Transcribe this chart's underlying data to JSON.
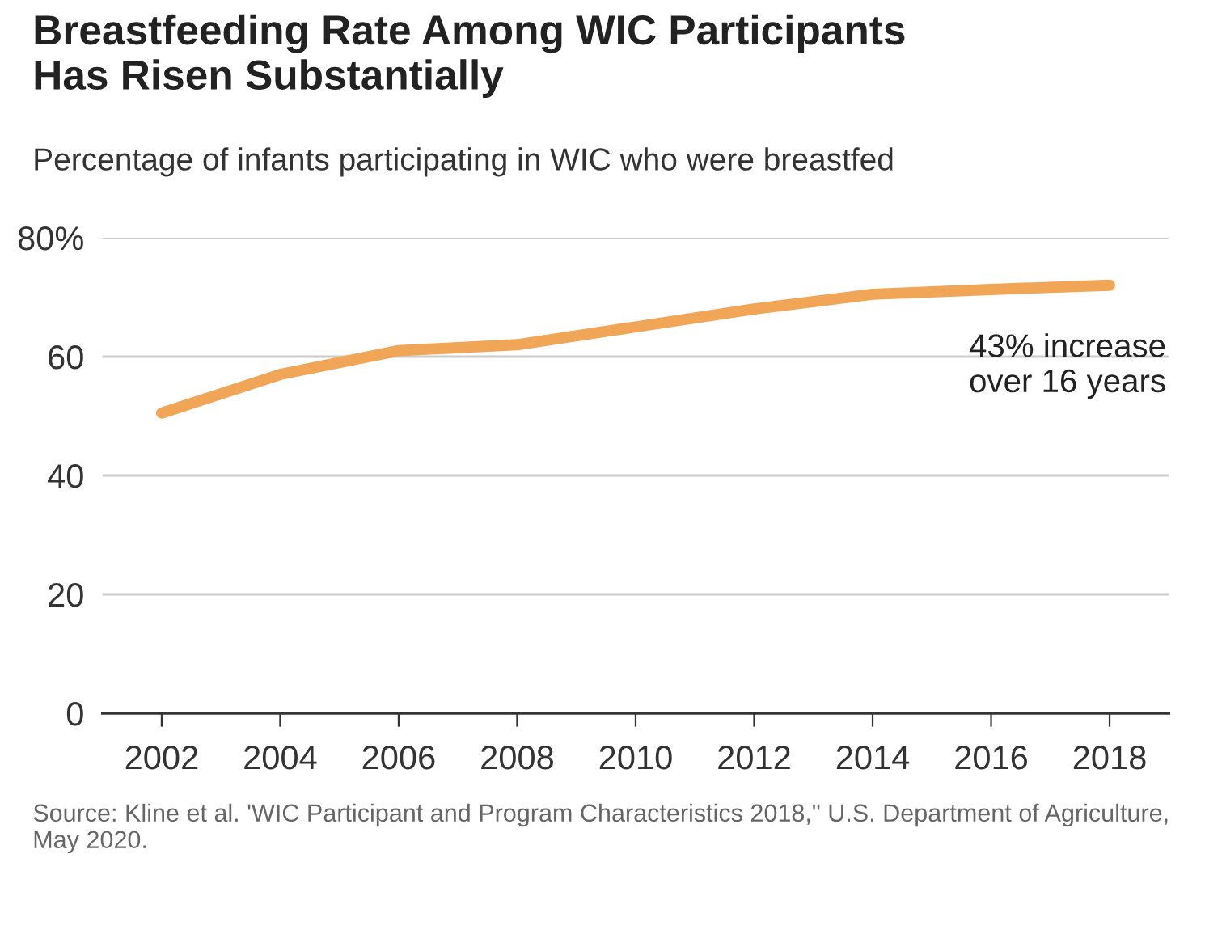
{
  "chart_data": {
    "type": "line",
    "title": "Breastfeeding Rate Among WIC Participants\nHas Risen Substantially",
    "subtitle": "Percentage of infants participating in WIC who were breastfed",
    "x": [
      2002,
      2004,
      2006,
      2008,
      2010,
      2012,
      2014,
      2016,
      2018
    ],
    "series": [
      {
        "color": "#f0a656",
        "values": [
          50.5,
          57,
          61,
          62,
          65,
          68,
          70.5,
          71.3,
          72
        ]
      }
    ],
    "xlim": [
      2001,
      2019
    ],
    "xticks": [
      2002,
      2004,
      2006,
      2008,
      2010,
      2012,
      2014,
      2016,
      2018
    ],
    "ylim": [
      0,
      80
    ],
    "yticks": [
      0,
      20,
      40,
      60,
      {
        "value": 80,
        "label": "80%"
      }
    ],
    "grid": "y",
    "marker": "none",
    "line_style": "solid",
    "annotations": [
      "43% increase\nover 16 years",
      "Source: Kline et al. 'WIC Participant and Program Characteristics 2018,\" U.S. Department of Agriculture, May 2020."
    ]
  }
}
